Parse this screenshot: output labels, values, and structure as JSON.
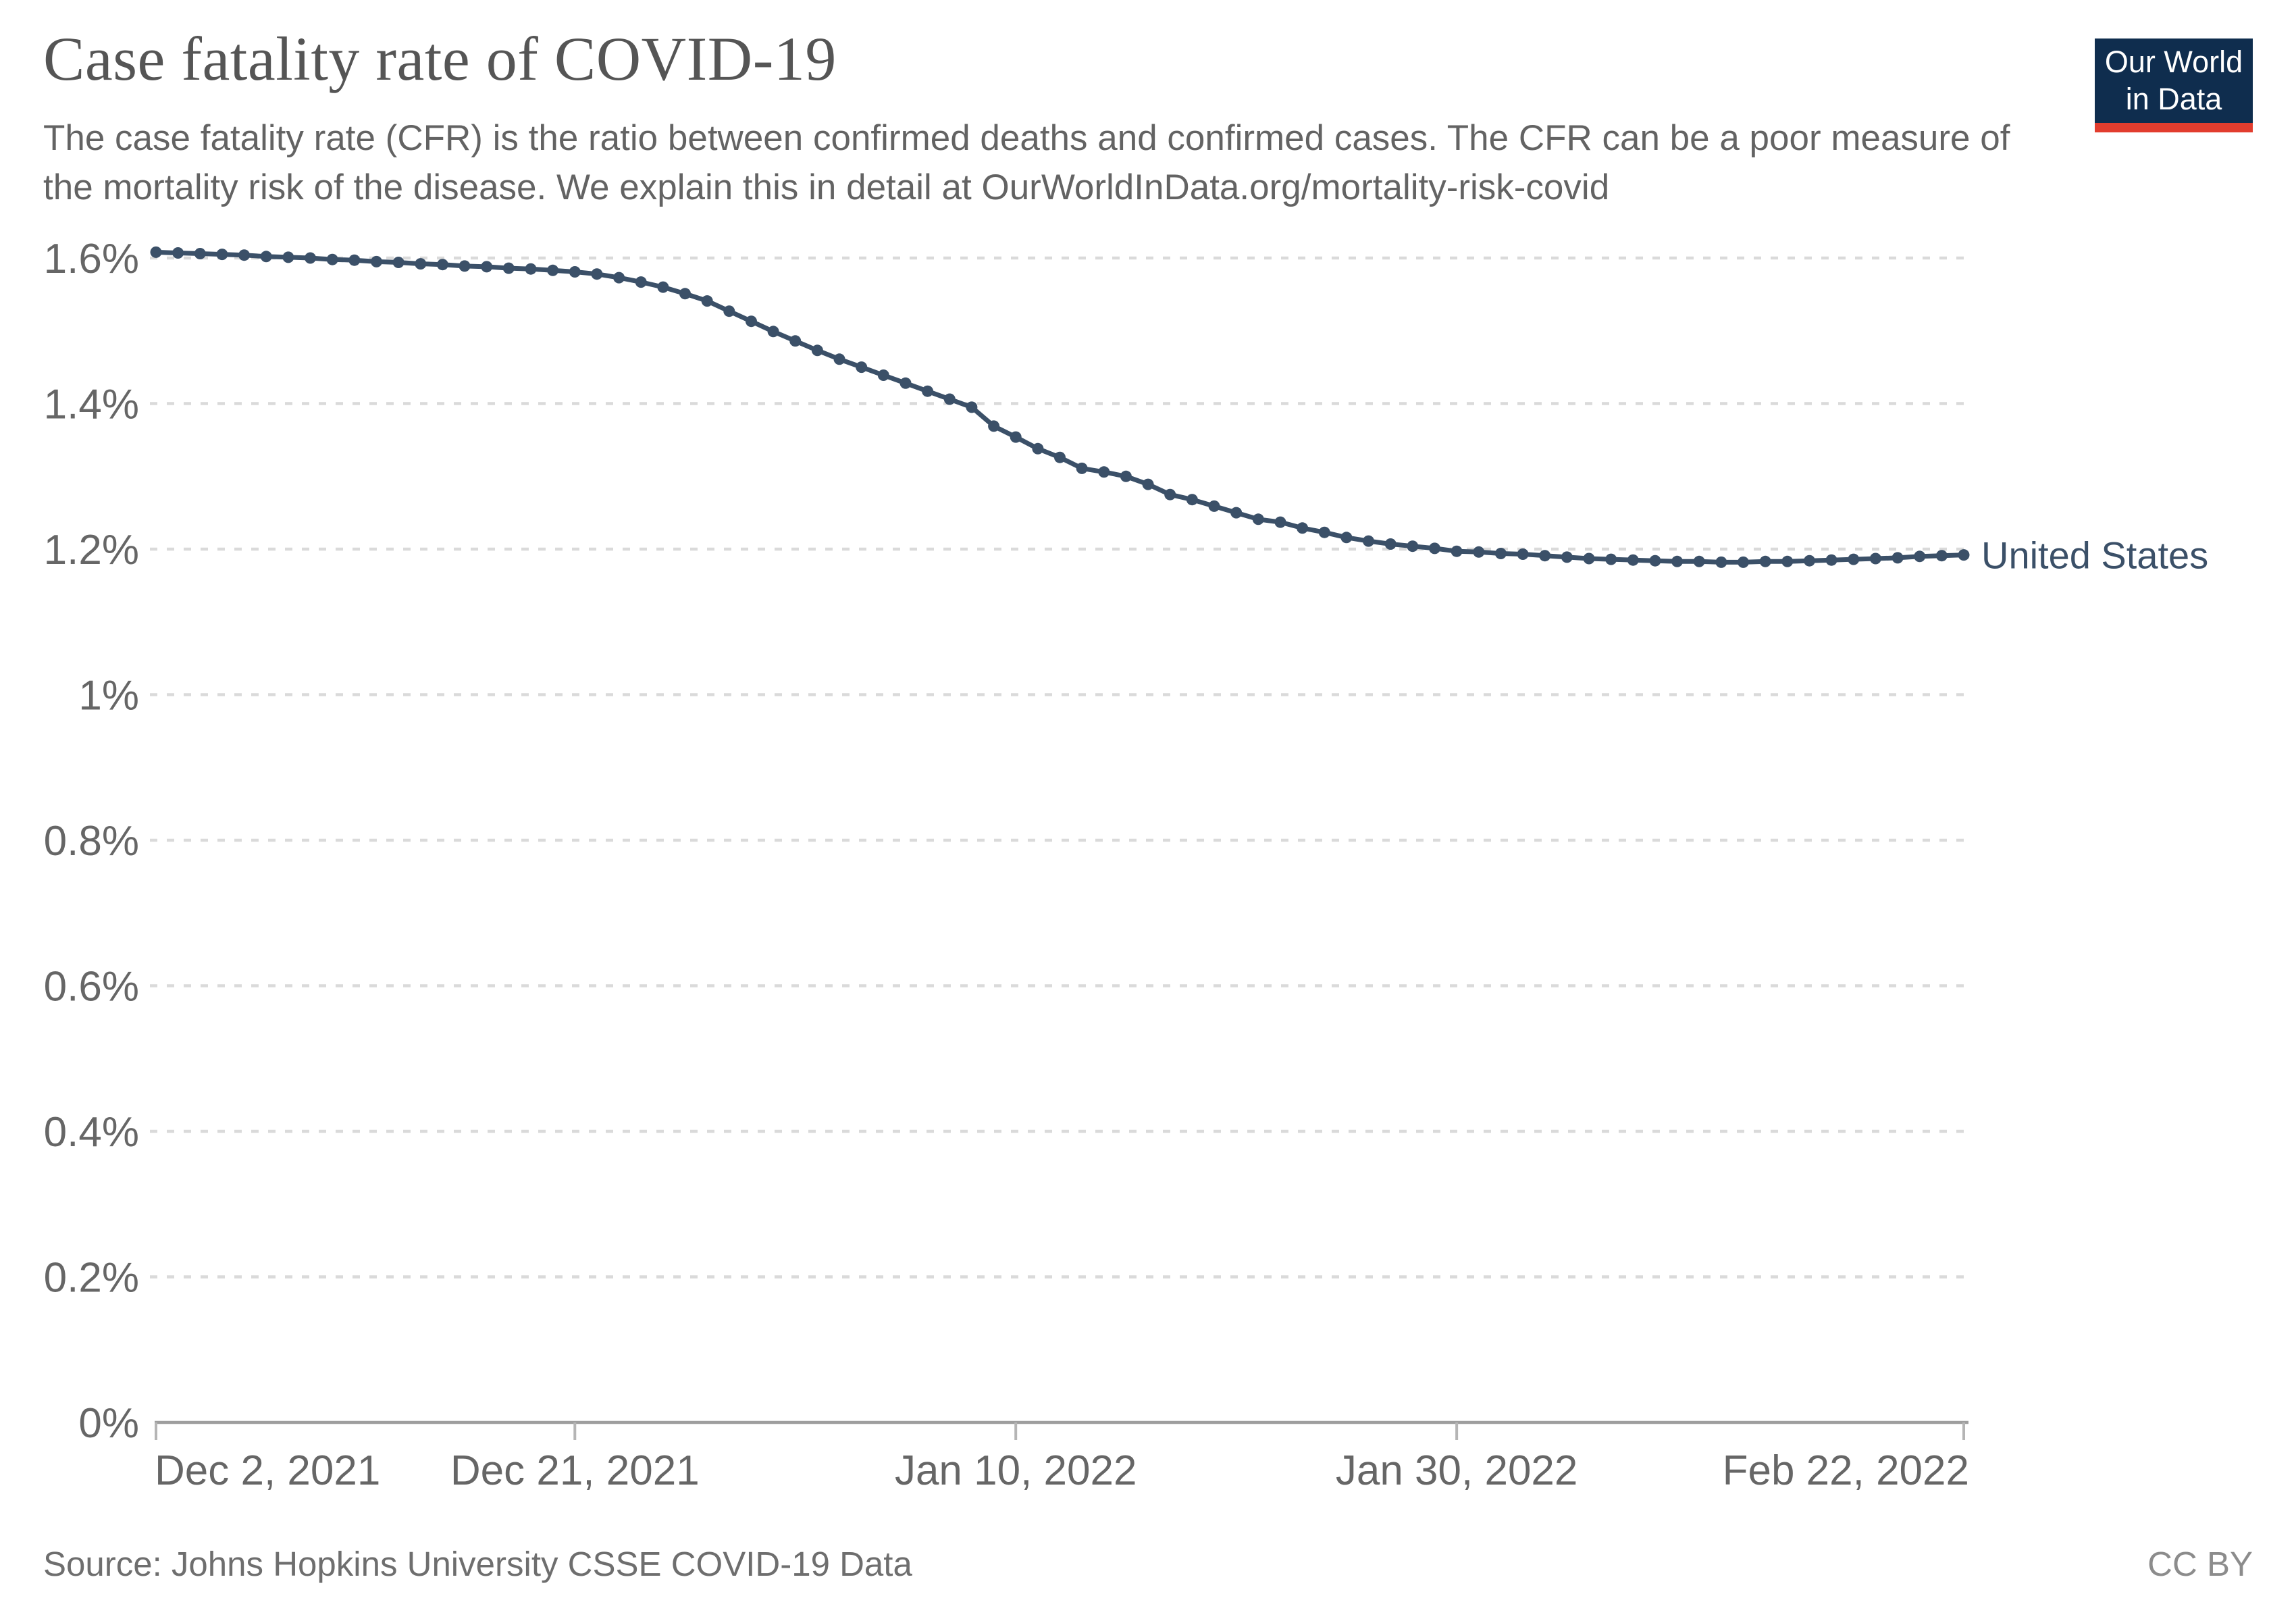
{
  "header": {
    "title": "Case fatality rate of COVID-19",
    "subtitle": "The case fatality rate (CFR) is the ratio between confirmed deaths and confirmed cases. The CFR can be a poor measure of the mortality risk of the disease. We explain this in detail at OurWorldInData.org/mortality-risk-covid",
    "logo": {
      "line1": "Our World",
      "line2": "in Data"
    }
  },
  "footer": {
    "source": "Source: Johns Hopkins University CSSE COVID-19 Data",
    "license": "CC BY"
  },
  "colors": {
    "line": "#3b5068",
    "grid": "#dadada",
    "axis": "#9e9e9e",
    "tick_mark": "#b5b5b5",
    "tick_text": "#666666",
    "title_text": "#555555",
    "subtitle_text": "#636363",
    "source_text": "#6e6e6e",
    "license_text": "#8c8c8c",
    "logo_bg": "#0f2d4e",
    "logo_bar": "#e23d2e",
    "logo_text": "#ffffff"
  },
  "chart_data": {
    "type": "line",
    "title": "Case fatality rate of COVID-19",
    "y_unit": "%",
    "ylim": [
      0,
      1.65
    ],
    "grid": true,
    "legend_position": "line-end-label",
    "y_ticks": [
      {
        "v": 1.6,
        "label": "1.6%"
      },
      {
        "v": 1.4,
        "label": "1.4%"
      },
      {
        "v": 1.2,
        "label": "1.2%"
      },
      {
        "v": 1.0,
        "label": "1%"
      },
      {
        "v": 0.8,
        "label": "0.8%"
      },
      {
        "v": 0.6,
        "label": "0.6%"
      },
      {
        "v": 0.4,
        "label": "0.4%"
      },
      {
        "v": 0.2,
        "label": "0.2%"
      },
      {
        "v": 0.0,
        "label": "0%"
      }
    ],
    "x_ticks": [
      {
        "index": 0,
        "label": "Dec 2, 2021",
        "align": "start"
      },
      {
        "index": 19,
        "label": "Dec 21, 2021",
        "align": "middle"
      },
      {
        "index": 39,
        "label": "Jan 10, 2022",
        "align": "middle"
      },
      {
        "index": 59,
        "label": "Jan 30, 2022",
        "align": "middle"
      },
      {
        "index": 82,
        "label": "Feb 22, 2022",
        "align": "end"
      }
    ],
    "series": [
      {
        "name": "United States",
        "color": "#3b5068",
        "dates": [
          "2021-12-02",
          "2021-12-03",
          "2021-12-04",
          "2021-12-05",
          "2021-12-06",
          "2021-12-07",
          "2021-12-08",
          "2021-12-09",
          "2021-12-10",
          "2021-12-11",
          "2021-12-12",
          "2021-12-13",
          "2021-12-14",
          "2021-12-15",
          "2021-12-16",
          "2021-12-17",
          "2021-12-18",
          "2021-12-19",
          "2021-12-20",
          "2021-12-21",
          "2021-12-22",
          "2021-12-23",
          "2021-12-24",
          "2021-12-25",
          "2021-12-26",
          "2021-12-27",
          "2021-12-28",
          "2021-12-29",
          "2021-12-30",
          "2021-12-31",
          "2022-01-01",
          "2022-01-02",
          "2022-01-03",
          "2022-01-04",
          "2022-01-05",
          "2022-01-06",
          "2022-01-07",
          "2022-01-08",
          "2022-01-09",
          "2022-01-10",
          "2022-01-11",
          "2022-01-12",
          "2022-01-13",
          "2022-01-14",
          "2022-01-15",
          "2022-01-16",
          "2022-01-17",
          "2022-01-18",
          "2022-01-19",
          "2022-01-20",
          "2022-01-21",
          "2022-01-22",
          "2022-01-23",
          "2022-01-24",
          "2022-01-25",
          "2022-01-26",
          "2022-01-27",
          "2022-01-28",
          "2022-01-29",
          "2022-01-30",
          "2022-01-31",
          "2022-02-01",
          "2022-02-02",
          "2022-02-03",
          "2022-02-04",
          "2022-02-05",
          "2022-02-06",
          "2022-02-07",
          "2022-02-08",
          "2022-02-09",
          "2022-02-10",
          "2022-02-11",
          "2022-02-12",
          "2022-02-13",
          "2022-02-14",
          "2022-02-15",
          "2022-02-16",
          "2022-02-17",
          "2022-02-18",
          "2022-02-19",
          "2022-02-20",
          "2022-02-21",
          "2022-02-22"
        ],
        "values": [
          1.608,
          1.607,
          1.606,
          1.605,
          1.604,
          1.602,
          1.601,
          1.6,
          1.598,
          1.597,
          1.595,
          1.594,
          1.592,
          1.591,
          1.589,
          1.588,
          1.586,
          1.585,
          1.583,
          1.581,
          1.578,
          1.573,
          1.567,
          1.56,
          1.551,
          1.541,
          1.527,
          1.513,
          1.499,
          1.486,
          1.473,
          1.461,
          1.45,
          1.439,
          1.428,
          1.417,
          1.406,
          1.395,
          1.369,
          1.354,
          1.338,
          1.326,
          1.311,
          1.306,
          1.3,
          1.289,
          1.275,
          1.268,
          1.259,
          1.25,
          1.241,
          1.237,
          1.229,
          1.223,
          1.216,
          1.211,
          1.207,
          1.204,
          1.201,
          1.197,
          1.196,
          1.194,
          1.193,
          1.191,
          1.189,
          1.187,
          1.186,
          1.185,
          1.184,
          1.183,
          1.183,
          1.182,
          1.182,
          1.183,
          1.183,
          1.184,
          1.185,
          1.186,
          1.187,
          1.188,
          1.19,
          1.191,
          1.192
        ]
      }
    ]
  }
}
